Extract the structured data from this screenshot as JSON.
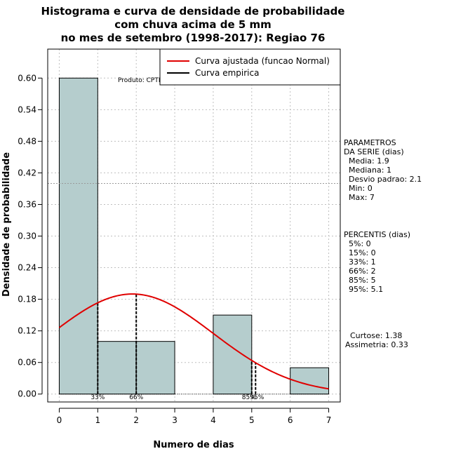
{
  "chart_data": {
    "type": "bar",
    "title_lines": [
      "Histograma e curva de densidade de probabilidade",
      "com chuva acima de 5 mm",
      "no mes de setembro (1998-2017): Regiao 76"
    ],
    "xlabel": "Numero de dias",
    "ylabel": "Densidade de probabilidade",
    "xlim": [
      -0.3,
      7.3
    ],
    "ylim": [
      -0.015,
      0.655
    ],
    "x_ticks": [
      "0",
      "1",
      "2",
      "3",
      "4",
      "5",
      "6",
      "7"
    ],
    "y_ticks": [
      "0.00",
      "0.06",
      "0.12",
      "0.18",
      "0.24",
      "0.30",
      "0.36",
      "0.42",
      "0.48",
      "0.54",
      "0.60"
    ],
    "bins": [
      {
        "start": 0,
        "end": 1,
        "value": 0.6
      },
      {
        "start": 1,
        "end": 2,
        "value": 0.1
      },
      {
        "start": 2,
        "end": 3,
        "value": 0.1
      },
      {
        "start": 3,
        "end": 4,
        "value": 0.0
      },
      {
        "start": 4,
        "end": 5,
        "value": 0.15
      },
      {
        "start": 5,
        "end": 6,
        "value": 0.0
      },
      {
        "start": 6,
        "end": 7,
        "value": 0.05
      }
    ],
    "normal_curve": {
      "mean": 1.9,
      "sd": 2.1,
      "x_range": [
        0,
        7
      ]
    },
    "horizontal_ref_line": 0.4,
    "percentile_lines": [
      {
        "x": 1,
        "label": "33%"
      },
      {
        "x": 2,
        "label": "66%"
      },
      {
        "x": 5,
        "label": "85%"
      },
      {
        "x": 5.1,
        "label": "95%"
      }
    ],
    "legend": {
      "position": "top-right",
      "entries": [
        {
          "label": "Curva ajustada (funcao Normal)",
          "color": "#e00000"
        },
        {
          "label": "Curva empirica",
          "color": "#000000"
        }
      ]
    },
    "product_label": "Produto: CPTEC/INPE",
    "colors": {
      "bar_fill": "#b5cdcd",
      "bar_stroke": "#000000",
      "curve": "#e00000",
      "grid": "#bfbfbf"
    }
  },
  "side_panel": {
    "parametros": [
      "PARAMETROS",
      "DA SERIE (dias)",
      "  Media: 1.9",
      "  Mediana: 1",
      "  Desvio padrao: 2.1",
      "  Min: 0",
      "  Max: 7"
    ],
    "percentis": [
      "PERCENTIS (dias)",
      "  5%: 0",
      "  15%: 0",
      "  33%: 1",
      "  66%: 2",
      "  85%: 5",
      "  95%: 5.1"
    ],
    "stats": [
      "  Curtose: 1.38",
      "Assimetria: 0.33"
    ]
  }
}
